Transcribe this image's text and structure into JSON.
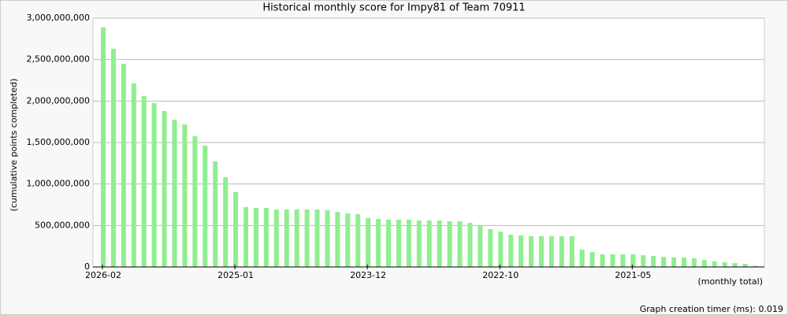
{
  "chart_data": {
    "type": "bar",
    "title": "Historical monthly score for Impy81 of Team 70911",
    "y_label": "(cumulative points completed)",
    "x_label": "(monthly total)",
    "footer": "Graph creation timer (ms): 0.019",
    "color": "#90ee90",
    "grid": true,
    "categories": [
      "2026-02",
      null,
      null,
      null,
      null,
      null,
      null,
      null,
      null,
      null,
      null,
      null,
      null,
      "2025-01",
      null,
      null,
      null,
      null,
      null,
      null,
      null,
      null,
      null,
      null,
      null,
      null,
      "2023-12",
      null,
      null,
      null,
      null,
      null,
      null,
      null,
      null,
      null,
      null,
      null,
      null,
      "2022-10",
      null,
      null,
      null,
      null,
      null,
      null,
      null,
      null,
      null,
      null,
      null,
      null,
      "2021-05",
      null,
      null,
      null,
      null,
      null,
      null,
      null,
      null,
      null,
      null,
      null,
      null
    ],
    "values": [
      2890000000,
      2630000000,
      2450000000,
      2212000000,
      2060000000,
      1975000000,
      1880000000,
      1775000000,
      1718000000,
      1576000000,
      1462000000,
      1272000000,
      1082000000,
      902000000,
      722000000,
      712000000,
      712000000,
      693000000,
      693000000,
      693000000,
      693000000,
      693000000,
      684000000,
      665000000,
      645000000,
      636000000,
      589000000,
      579000000,
      570000000,
      570000000,
      570000000,
      560000000,
      560000000,
      560000000,
      551000000,
      551000000,
      532000000,
      494000000,
      456000000,
      427000000,
      389000000,
      380000000,
      370000000,
      370000000,
      370000000,
      370000000,
      370000000,
      209000000,
      180000000,
      152000000,
      152000000,
      152000000,
      152000000,
      142000000,
      133000000,
      123000000,
      114000000,
      114000000,
      104000000,
      85000000,
      66000000,
      57000000,
      47000000,
      38000000,
      15000000
    ],
    "ylim": [
      0,
      3000000000
    ],
    "yticks": [
      {
        "value": 0,
        "label": "0"
      },
      {
        "value": 500000000,
        "label": "500,000,000"
      },
      {
        "value": 1000000000,
        "label": "1,000,000,000"
      },
      {
        "value": 1500000000,
        "label": "1,500,000,000"
      },
      {
        "value": 2000000000,
        "label": "2,000,000,000"
      },
      {
        "value": 2500000000,
        "label": "2,500,000,000"
      },
      {
        "value": 3000000000,
        "label": "3,000,000,000"
      }
    ]
  }
}
